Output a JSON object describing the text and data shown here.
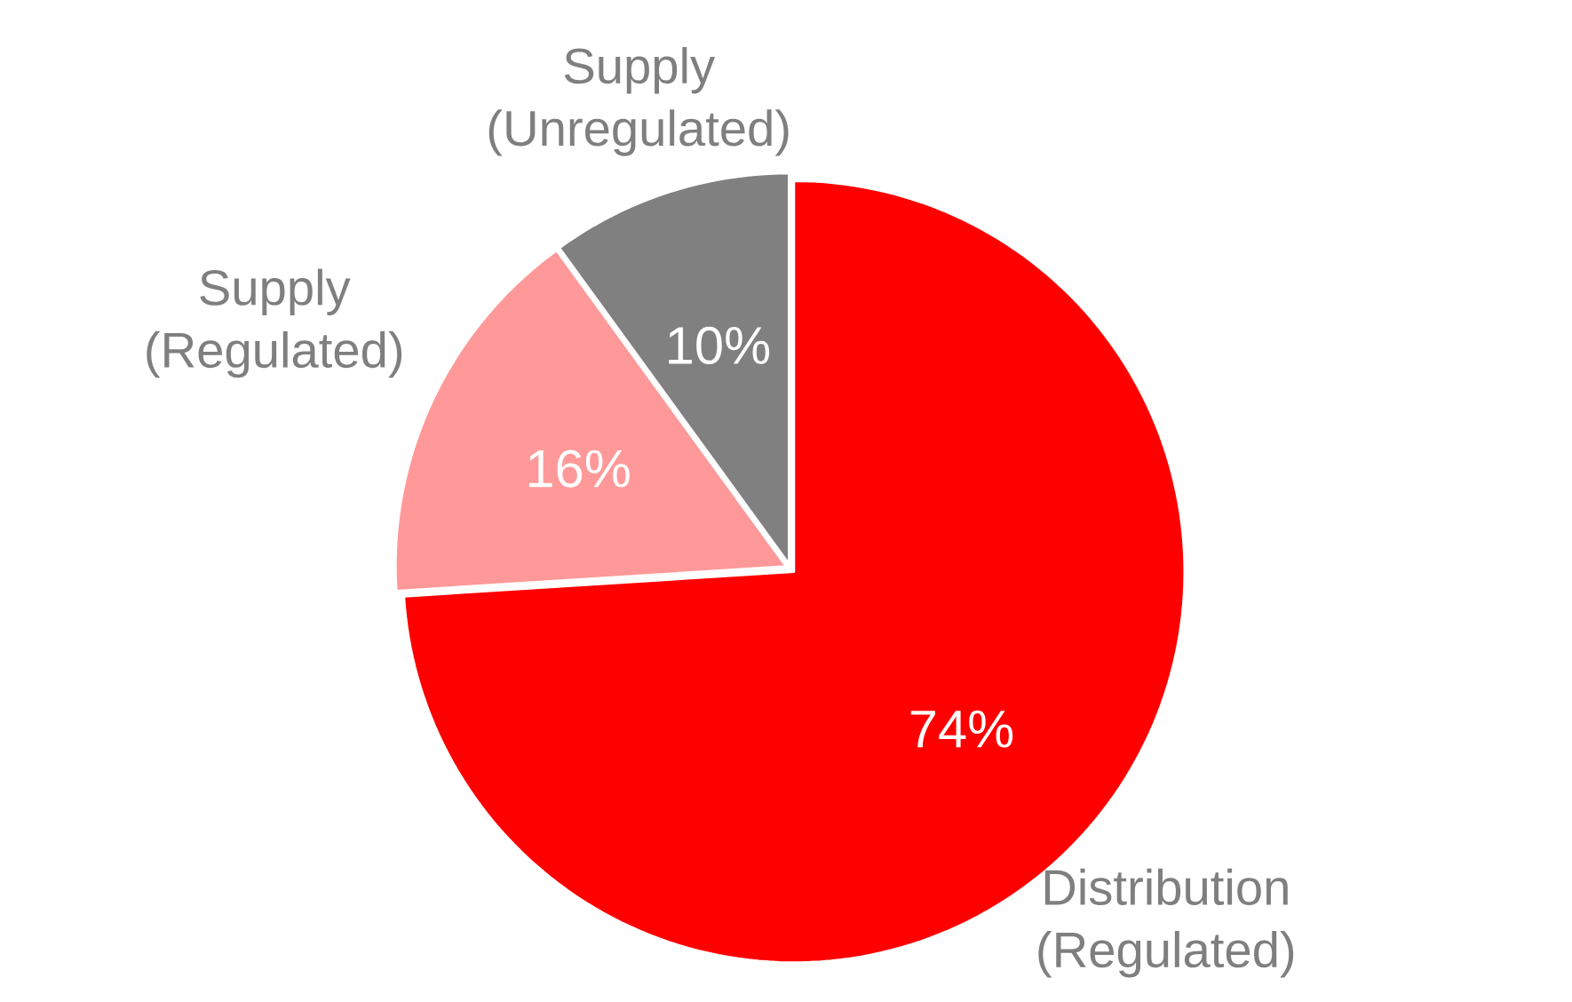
{
  "chart_data": {
    "type": "pie",
    "categories": [
      "Distribution (Regulated)",
      "Supply (Regulated)",
      "Supply (Unregulated)"
    ],
    "values": [
      74,
      16,
      10
    ],
    "colors": [
      "#ff0000",
      "#ff9999",
      "#808080"
    ],
    "value_labels": [
      "74%",
      "16%",
      "10%"
    ]
  }
}
